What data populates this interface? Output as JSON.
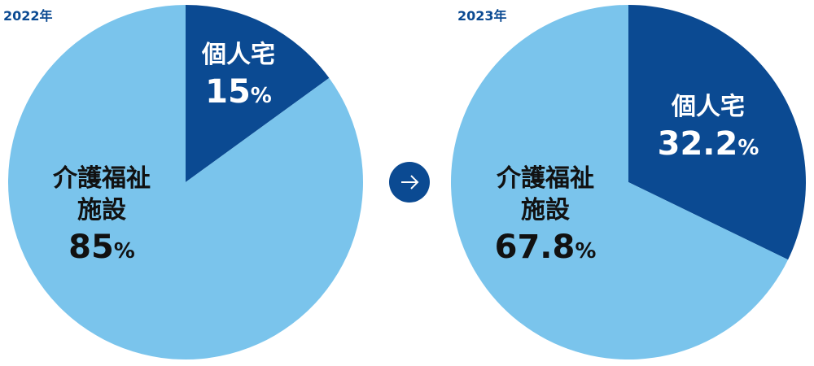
{
  "chart_data": [
    {
      "type": "pie",
      "title": "2022年",
      "categories": [
        "個人宅",
        "介護福祉施設"
      ],
      "values": [
        15,
        85
      ],
      "value_labels": [
        "15%",
        "85%"
      ],
      "colors": [
        "#0b4a92",
        "#7ac4ec"
      ]
    },
    {
      "type": "pie",
      "title": "2023年",
      "categories": [
        "個人宅",
        "介護福祉施設"
      ],
      "values": [
        32.2,
        67.8
      ],
      "value_labels": [
        "32.2%",
        "67.8%"
      ],
      "colors": [
        "#0b4a92",
        "#7ac4ec"
      ]
    }
  ]
}
